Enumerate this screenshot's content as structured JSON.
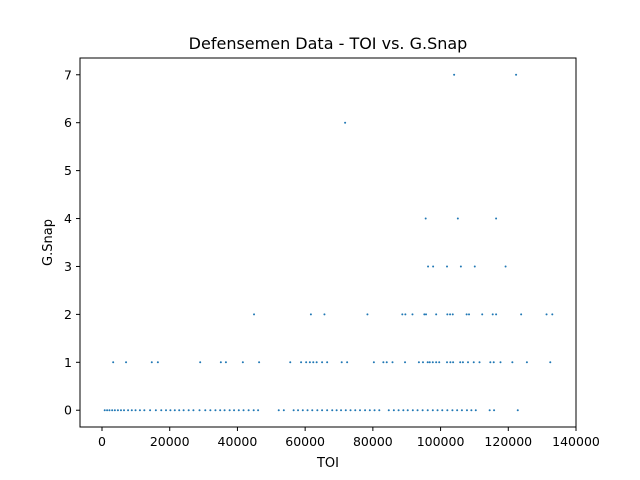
{
  "chart_data": {
    "type": "scatter",
    "title": "Defensemen Data - TOI vs. G.Snap",
    "xlabel": "TOI",
    "ylabel": "G.Snap",
    "xlim": [
      -6500,
      140000
    ],
    "ylim": [
      -0.35,
      7.35
    ],
    "xticks": [
      0,
      20000,
      40000,
      60000,
      80000,
      100000,
      120000,
      140000
    ],
    "xtick_labels": [
      "0",
      "20000",
      "40000",
      "60000",
      "80000",
      "100000",
      "120000",
      "140000"
    ],
    "yticks": [
      0,
      1,
      2,
      3,
      4,
      5,
      6,
      7
    ],
    "ytick_labels": [
      "0",
      "1",
      "2",
      "3",
      "4",
      "5",
      "6",
      "7"
    ],
    "grid": false,
    "series_color": "#1f77b4",
    "x": [
      104000,
      122300,
      71800,
      95600,
      105100,
      116400,
      96300,
      97800,
      101900,
      106000,
      110100,
      119200,
      44900,
      61700,
      65700,
      78400,
      88700,
      89600,
      91700,
      95200,
      95700,
      98700,
      102000,
      102800,
      103600,
      107700,
      108400,
      112300,
      115400,
      116400,
      123800,
      131300,
      133000,
      3300,
      7100,
      14700,
      16500,
      29000,
      35100,
      36600,
      41600,
      46400,
      55600,
      58800,
      60300,
      61400,
      62400,
      63400,
      65000,
      66500,
      70800,
      72400,
      80300,
      83100,
      84100,
      85800,
      89500,
      93600,
      94800,
      96200,
      96800,
      97700,
      98700,
      99600,
      101900,
      102900,
      103700,
      105800,
      106600,
      108100,
      109800,
      111500,
      114700,
      115700,
      117700,
      121200,
      125500,
      132400,
      800,
      1500,
      2200,
      3000,
      3800,
      4700,
      5600,
      6500,
      7700,
      8800,
      9900,
      11200,
      12500,
      14200,
      15900,
      17500,
      18900,
      20200,
      21500,
      22800,
      24100,
      25600,
      27000,
      28800,
      30500,
      32000,
      33500,
      34900,
      36200,
      37700,
      39000,
      40400,
      41800,
      43300,
      44800,
      46100,
      52200,
      53700,
      56600,
      57900,
      59300,
      60700,
      62100,
      63600,
      65000,
      66500,
      68000,
      69300,
      70600,
      72000,
      73400,
      74800,
      76200,
      77700,
      79100,
      80500,
      81900,
      84700,
      86200,
      87600,
      89000,
      90300,
      91800,
      93200,
      94700,
      96200,
      97700,
      99100,
      100500,
      102000,
      103500,
      104900,
      106300,
      107800,
      109100,
      110400,
      114500,
      115800,
      122800
    ],
    "y": [
      7,
      7,
      6,
      4,
      4,
      4,
      3,
      3,
      3,
      3,
      3,
      3,
      2,
      2,
      2,
      2,
      2,
      2,
      2,
      2,
      2,
      2,
      2,
      2,
      2,
      2,
      2,
      2,
      2,
      2,
      2,
      2,
      2,
      1,
      1,
      1,
      1,
      1,
      1,
      1,
      1,
      1,
      1,
      1,
      1,
      1,
      1,
      1,
      1,
      1,
      1,
      1,
      1,
      1,
      1,
      1,
      1,
      1,
      1,
      1,
      1,
      1,
      1,
      1,
      1,
      1,
      1,
      1,
      1,
      1,
      1,
      1,
      1,
      1,
      1,
      1,
      1,
      1,
      0,
      0,
      0,
      0,
      0,
      0,
      0,
      0,
      0,
      0,
      0,
      0,
      0,
      0,
      0,
      0,
      0,
      0,
      0,
      0,
      0,
      0,
      0,
      0,
      0,
      0,
      0,
      0,
      0,
      0,
      0,
      0,
      0,
      0,
      0,
      0,
      0,
      0,
      0,
      0,
      0,
      0,
      0,
      0,
      0,
      0,
      0,
      0,
      0,
      0,
      0,
      0,
      0,
      0,
      0,
      0,
      0,
      0,
      0,
      0,
      0,
      0,
      0,
      0,
      0,
      0,
      0,
      0,
      0,
      0,
      0,
      0,
      0,
      0,
      0,
      0,
      0,
      0,
      0
    ]
  }
}
